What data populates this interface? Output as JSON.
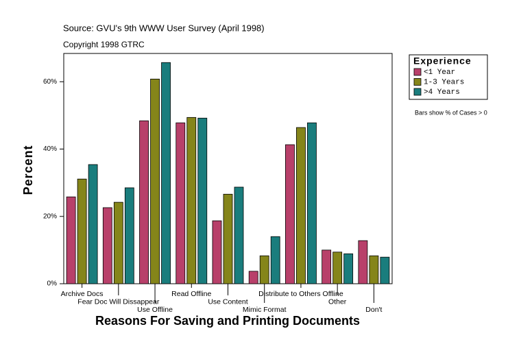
{
  "chart_data": {
    "type": "bar",
    "source": "Source: GVU's 9th WWW User Survey (April 1998)",
    "copyright": "Copyright 1998 GTRC",
    "x_label": "Reasons For Saving and Printing Documents",
    "y_label": "Percent",
    "legend_title": "Experience",
    "note": "Bars show % of Cases > 0",
    "categories": [
      "Archive Docs",
      "Fear Doc Will Dissappear",
      "Use Offline",
      "Read Offline",
      "Use Content",
      "Mimic Format",
      "Distribute to Others Offline",
      "Other",
      "Don't"
    ],
    "series": [
      {
        "name": "<1 Year",
        "color": "#b8406a",
        "values": [
          25.8,
          22.6,
          48.4,
          47.8,
          18.7,
          3.7,
          41.3,
          10.0,
          12.8
        ]
      },
      {
        "name": "1-3 Years",
        "color": "#85851a",
        "values": [
          31.1,
          24.2,
          60.8,
          49.4,
          26.6,
          8.3,
          46.4,
          9.4,
          8.3
        ]
      },
      {
        "name": ">4 Years",
        "color": "#1a7d7d",
        "values": [
          35.4,
          28.5,
          65.7,
          49.2,
          28.7,
          14.0,
          47.8,
          8.9,
          7.9
        ]
      }
    ],
    "ylim": [
      0,
      68.4
    ],
    "yticks": [
      {
        "value": 0,
        "label": "0%"
      },
      {
        "value": 20,
        "label": "20%"
      },
      {
        "value": 40,
        "label": "40%"
      },
      {
        "value": 60,
        "label": "60%"
      }
    ],
    "grid": false
  }
}
